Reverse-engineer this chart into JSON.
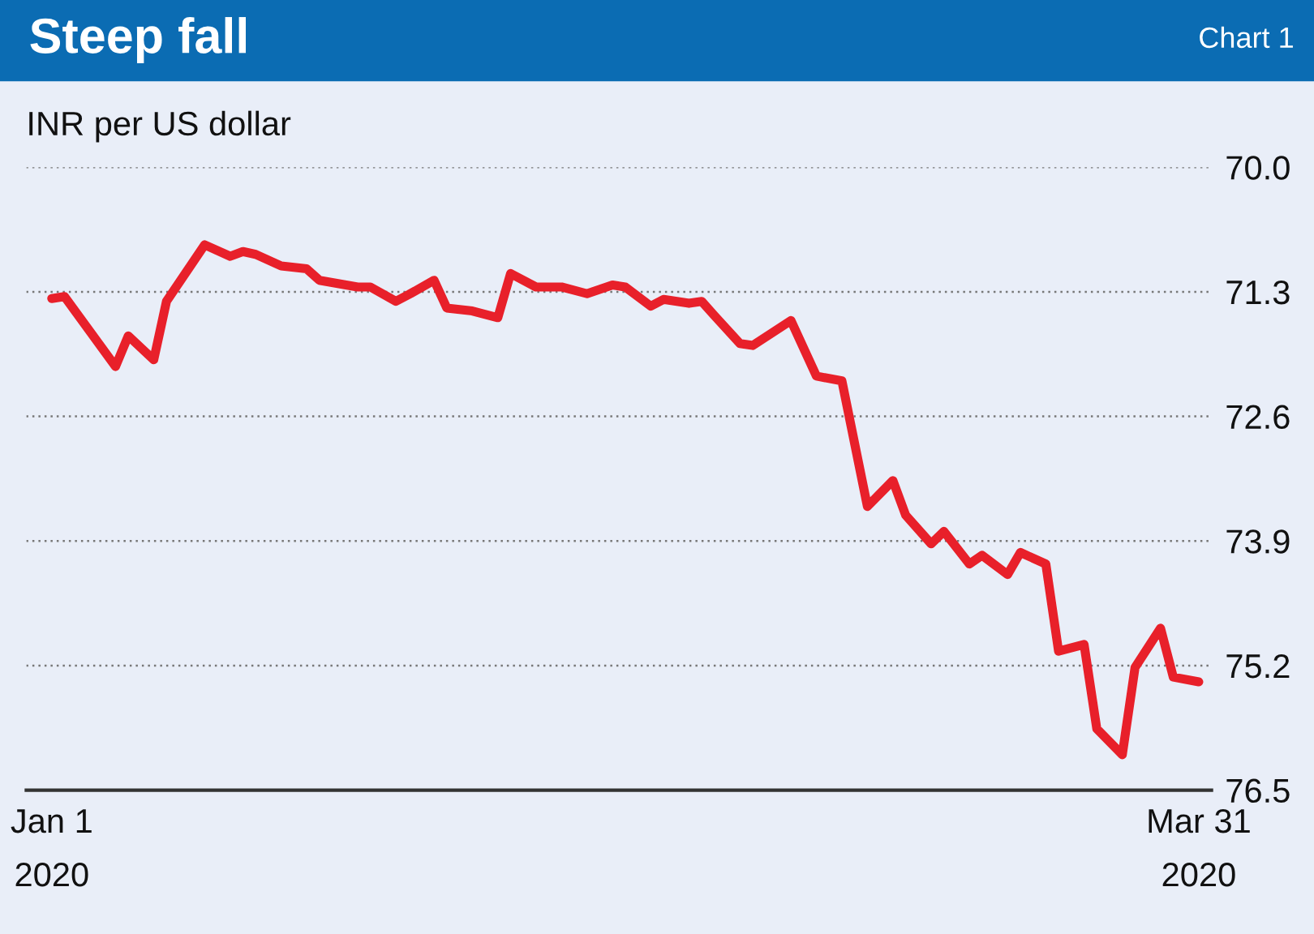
{
  "chart_data": {
    "type": "line",
    "title": "Steep fall",
    "ylabel": "INR per US dollar",
    "annotations": [
      "Chart 1"
    ],
    "x": [
      "2020-01-01",
      "2020-01-02",
      "2020-01-06",
      "2020-01-07",
      "2020-01-09",
      "2020-01-10",
      "2020-01-13",
      "2020-01-15",
      "2020-01-16",
      "2020-01-17",
      "2020-01-19",
      "2020-01-21",
      "2020-01-22",
      "2020-01-25",
      "2020-01-26",
      "2020-01-28",
      "2020-01-29",
      "2020-01-31",
      "2020-02-01",
      "2020-02-03",
      "2020-02-05",
      "2020-02-06",
      "2020-02-08",
      "2020-02-10",
      "2020-02-12",
      "2020-02-14",
      "2020-02-15",
      "2020-02-17",
      "2020-02-18",
      "2020-02-20",
      "2020-02-21",
      "2020-02-22",
      "2020-02-24",
      "2020-02-25",
      "2020-02-28",
      "2020-03-01",
      "2020-03-03",
      "2020-03-05",
      "2020-03-07",
      "2020-03-08",
      "2020-03-10",
      "2020-03-11",
      "2020-03-13",
      "2020-03-14",
      "2020-03-16",
      "2020-03-17",
      "2020-03-19",
      "2020-03-20",
      "2020-03-22",
      "2020-03-23",
      "2020-03-25",
      "2020-03-26",
      "2020-03-28",
      "2020-03-29",
      "2020-03-31"
    ],
    "series": [
      {
        "color": "#e8202a",
        "values": [
          71.37,
          71.35,
          72.08,
          71.76,
          72.01,
          71.4,
          70.81,
          70.93,
          70.88,
          70.91,
          71.03,
          71.06,
          71.18,
          71.25,
          71.25,
          71.4,
          71.33,
          71.18,
          71.47,
          71.5,
          71.57,
          71.11,
          71.25,
          71.25,
          71.32,
          71.23,
          71.25,
          71.45,
          71.38,
          71.42,
          71.4,
          71.55,
          71.84,
          71.86,
          71.6,
          72.18,
          72.23,
          73.54,
          73.27,
          73.63,
          73.93,
          73.8,
          74.14,
          74.05,
          74.25,
          74.02,
          74.14,
          75.05,
          74.98,
          75.86,
          76.13,
          75.22,
          74.81,
          75.32,
          75.37
        ]
      }
    ],
    "xlim": [
      "2019-12-30",
      "2020-04-01"
    ],
    "xticks": [
      {
        "value": "2020-01-01",
        "label": "Jan 1\n2020"
      },
      {
        "value": "2020-03-31",
        "label": "Mar 31\n2020"
      }
    ],
    "ylim": [
      76.5,
      70.0
    ],
    "yticks": [
      {
        "value": 70.0,
        "label": "70.0"
      },
      {
        "value": 71.3,
        "label": "71.3"
      },
      {
        "value": 72.6,
        "label": "72.6"
      },
      {
        "value": 73.9,
        "label": "73.9"
      },
      {
        "value": 75.2,
        "label": "75.2"
      },
      {
        "value": 76.5,
        "label": "76.5"
      }
    ],
    "grid": "y",
    "marker": "none",
    "line_style": "solid",
    "legend": false
  }
}
